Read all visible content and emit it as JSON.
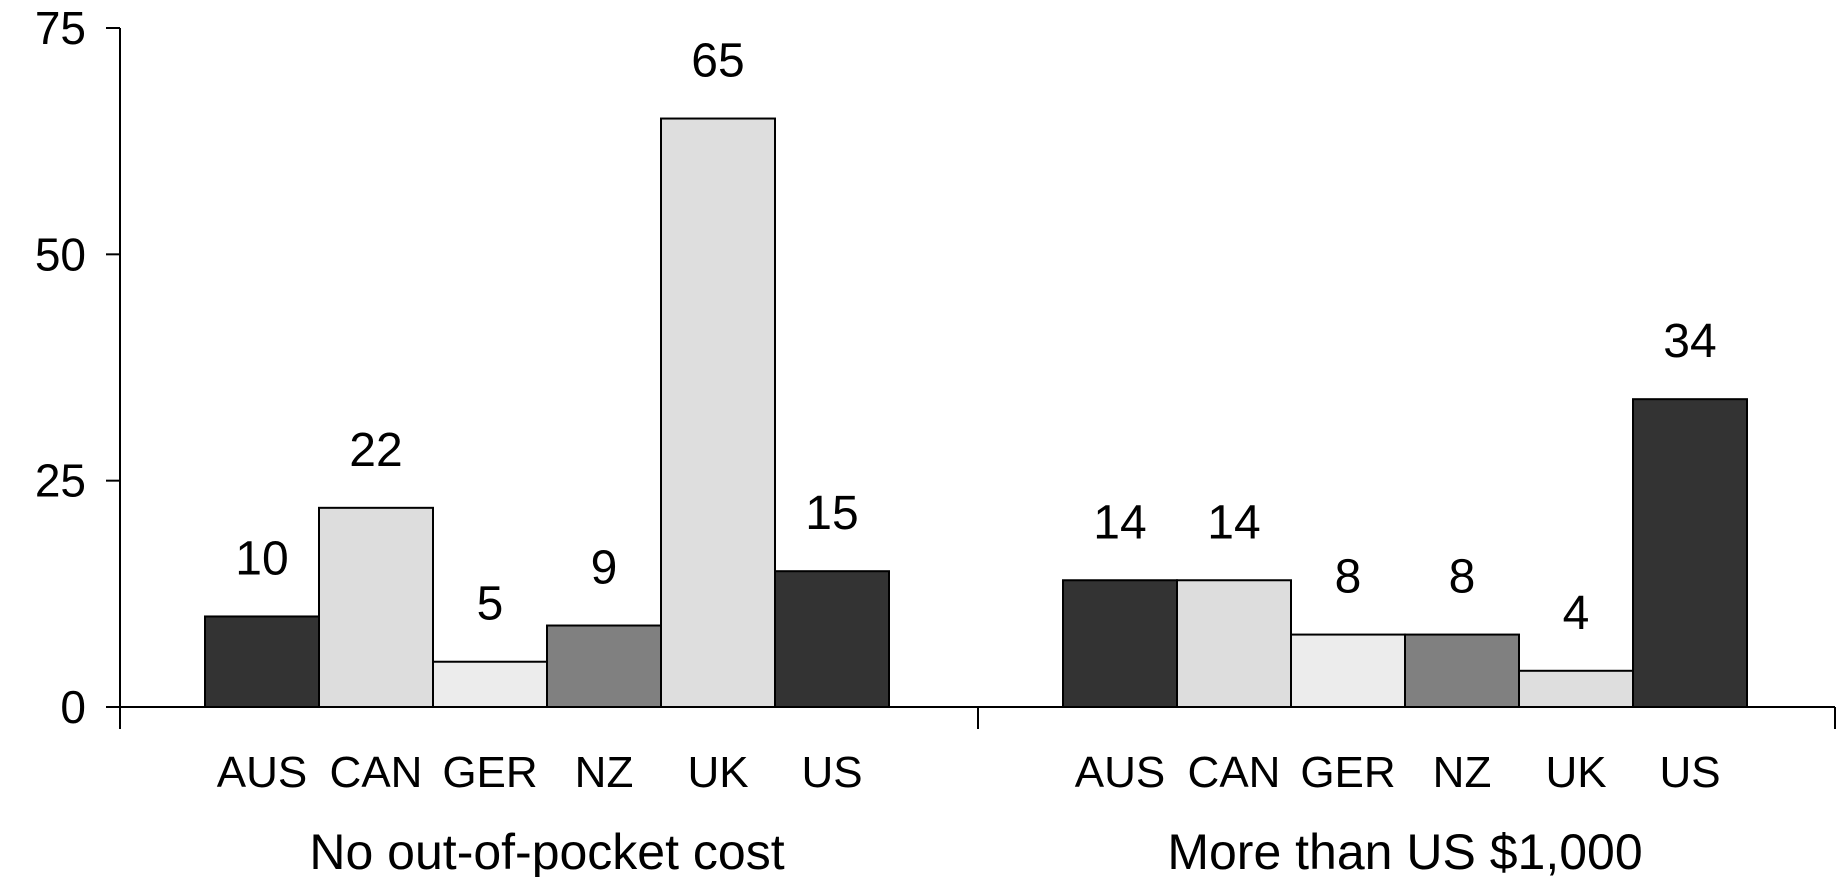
{
  "chart_data": {
    "type": "bar",
    "ylim": [
      0,
      75
    ],
    "yticks": [
      "0",
      "25",
      "50",
      "75"
    ],
    "grid": false,
    "colors": {
      "AUS": "#333333",
      "CAN": "#dddddd",
      "GER": "#ececec",
      "NZ": "#808080",
      "UK": "#dedede",
      "US": "#333333"
    },
    "groups": [
      {
        "label": "No out-of-pocket cost",
        "categories": [
          "AUS",
          "CAN",
          "GER",
          "NZ",
          "UK",
          "US"
        ],
        "values": [
          10,
          22,
          5,
          9,
          65,
          15
        ]
      },
      {
        "label": "More than US $1,000",
        "categories": [
          "AUS",
          "CAN",
          "GER",
          "NZ",
          "UK",
          "US"
        ],
        "values": [
          14,
          14,
          8,
          8,
          4,
          34
        ]
      }
    ]
  }
}
